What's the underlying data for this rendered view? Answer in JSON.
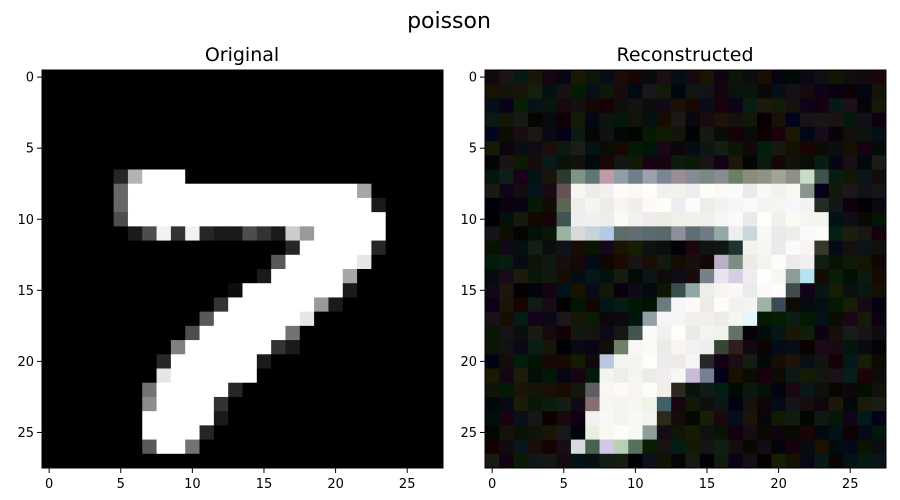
{
  "figure": {
    "suptitle": "poisson"
  },
  "chart_data": [
    {
      "type": "heatmap",
      "title": "Original",
      "colormap": "gray",
      "shape": [
        28,
        28
      ],
      "xlim": [
        -0.5,
        27.5
      ],
      "ylim": [
        27.5,
        -0.5
      ],
      "xticks": [
        0,
        5,
        10,
        15,
        20,
        25
      ],
      "yticks": [
        0,
        5,
        10,
        15,
        20,
        25
      ],
      "xtick_labels": [
        "0",
        "5",
        "10",
        "15",
        "20",
        "25"
      ],
      "ytick_labels": [
        "0",
        "5",
        "10",
        "15",
        "20",
        "25"
      ],
      "rows": {
        "7": {
          "5": 0.15,
          "6": 0.7,
          "7": 1,
          "8": 1,
          "9": 1
        },
        "8": {
          "5": 0.4,
          "6": 1,
          "7": 1,
          "8": 1,
          "9": 1,
          "10": 1,
          "11": 1,
          "12": 1,
          "13": 1,
          "14": 1,
          "15": 1,
          "16": 1,
          "17": 1,
          "18": 1,
          "19": 1,
          "20": 1,
          "21": 1,
          "22": 0.65
        },
        "9": {
          "5": 0.4,
          "6": 1,
          "7": 1,
          "8": 1,
          "9": 1,
          "10": 1,
          "11": 1,
          "12": 1,
          "13": 1,
          "14": 1,
          "15": 1,
          "16": 1,
          "17": 1,
          "18": 1,
          "19": 1,
          "20": 1,
          "21": 1,
          "22": 1,
          "23": 0.1
        },
        "10": {
          "5": 0.3,
          "6": 1,
          "7": 1,
          "8": 1,
          "9": 1,
          "10": 1,
          "11": 1,
          "12": 1,
          "13": 1,
          "14": 1,
          "15": 1,
          "16": 1,
          "17": 1,
          "18": 1,
          "19": 1,
          "20": 1,
          "21": 1,
          "22": 1,
          "23": 1
        },
        "11": {
          "6": 0.1,
          "7": 0.3,
          "8": 0.95,
          "9": 0.2,
          "10": 0.95,
          "11": 0.15,
          "12": 0.1,
          "13": 0.1,
          "14": 0.3,
          "15": 0.2,
          "16": 0.1,
          "17": 0.8,
          "18": 0.6,
          "19": 1,
          "20": 1,
          "21": 1,
          "22": 1,
          "23": 1
        },
        "12": {
          "17": 0.15,
          "18": 1,
          "19": 1,
          "20": 1,
          "21": 1,
          "22": 1,
          "23": 0.15
        },
        "13": {
          "16": 0.35,
          "17": 1,
          "18": 1,
          "19": 1,
          "20": 1,
          "21": 1,
          "22": 0.9
        },
        "14": {
          "15": 0.1,
          "16": 1,
          "17": 1,
          "18": 1,
          "19": 1,
          "20": 1,
          "21": 0.65
        },
        "15": {
          "13": 0.05,
          "14": 1,
          "15": 1,
          "16": 1,
          "17": 1,
          "18": 1,
          "19": 1,
          "20": 1,
          "21": 0.1
        },
        "16": {
          "12": 0.2,
          "13": 1,
          "14": 1,
          "15": 1,
          "16": 1,
          "17": 1,
          "18": 1,
          "19": 0.6,
          "20": 0.1
        },
        "17": {
          "11": 0.35,
          "12": 1,
          "13": 1,
          "14": 1,
          "15": 1,
          "16": 1,
          "17": 1,
          "18": 0.9
        },
        "18": {
          "10": 0.3,
          "11": 1,
          "12": 1,
          "13": 1,
          "14": 1,
          "15": 1,
          "16": 1,
          "17": 0.45
        },
        "19": {
          "9": 0.5,
          "10": 1,
          "11": 1,
          "12": 1,
          "13": 1,
          "14": 1,
          "15": 1,
          "16": 0.2,
          "17": 0.1
        },
        "20": {
          "8": 0.15,
          "9": 1,
          "10": 1,
          "11": 1,
          "12": 1,
          "13": 1,
          "14": 1,
          "15": 0.1
        },
        "21": {
          "8": 0.9,
          "9": 1,
          "10": 1,
          "11": 1,
          "12": 1,
          "13": 1,
          "14": 1
        },
        "22": {
          "7": 0.45,
          "8": 1,
          "9": 1,
          "10": 1,
          "11": 1,
          "12": 1,
          "13": 0.15
        },
        "23": {
          "7": 0.55,
          "8": 1,
          "9": 1,
          "10": 1,
          "11": 1,
          "12": 0.2
        },
        "24": {
          "7": 1,
          "8": 1,
          "9": 1,
          "10": 1,
          "11": 1,
          "12": 0.1
        },
        "25": {
          "7": 1,
          "8": 1,
          "9": 1,
          "10": 1,
          "11": 0.15
        },
        "26": {
          "7": 0.35,
          "8": 1,
          "9": 1,
          "10": 0.45
        }
      }
    },
    {
      "type": "heatmap",
      "title": "Reconstructed",
      "colormap": "rgb",
      "shape": [
        28,
        28
      ],
      "xlim": [
        -0.5,
        27.5
      ],
      "ylim": [
        27.5,
        -0.5
      ],
      "xticks": [
        0,
        5,
        10,
        15,
        20,
        25
      ],
      "yticks": [
        0,
        5,
        10,
        15,
        20,
        25
      ],
      "xtick_labels": [
        "0",
        "5",
        "10",
        "15",
        "20",
        "25"
      ],
      "ytick_labels": [
        "0",
        "5",
        "10",
        "15",
        "20",
        "25"
      ],
      "note_colors": {
        "7": {
          "5": "#2a3a30",
          "6": "#7f9484",
          "7": "#5d7872",
          "8": "#c09aa6",
          "9": "#8f9ea5",
          "10": "#6e7f8c",
          "11": "#a09fae",
          "12": "#7a8694",
          "13": "#9a8d95",
          "14": "#878995",
          "15": "#7a8a82",
          "16": "#8a8b8f",
          "17": "#6b8062",
          "18": "#8d8b7a",
          "19": "#8b9487",
          "20": "#a2a497",
          "21": "#8e8f86",
          "22": "#c8dcc7",
          "23": "#43524b"
        },
        "11": {
          "5": "#9ab29f",
          "6": "#d9d9d9",
          "7": "#c9d2d6",
          "8": "#b3c9e6",
          "9": "#5d6e6a",
          "10": "#636c73",
          "11": "#5b6a71",
          "12": "#5a6868",
          "13": "#8a8f99",
          "14": "#5d6f75",
          "15": "#717b85",
          "16": "#95a8a8",
          "17": "#eeeeee",
          "18": "#c8d6de"
        },
        "13": {
          "16": "#b9b0c6",
          "17": "#7b8f80"
        },
        "14": {
          "15": "#77818c",
          "16": "#e8e3f0",
          "17": "#d6cde4",
          "22": "#b4e2ef"
        },
        "15": {
          "13": "#3b4e4b",
          "14": "#8fa6a7",
          "21": "#414d4d"
        },
        "16": {
          "12": "#6a7c7d",
          "19": "#9fb2a6",
          "20": "#3b4a55"
        },
        "17": {
          "11": "#8fa0a7",
          "18": "#e2f7fb"
        },
        "20": {
          "8": "#b6c7de"
        },
        "21": {
          "14": "#c9bcd6",
          "15": "#777f92"
        },
        "23": {
          "11": "#eef4e6",
          "12": "#406069"
        },
        "25": {
          "7": "#eaf0e1",
          "11": "#8e9f97"
        },
        "26": {
          "6": "#d6d9dd",
          "8": "#d3c6e5",
          "9": "#b6d0b6",
          "10": "#58705e"
        }
      },
      "reconstruction_of": "Original"
    }
  ]
}
